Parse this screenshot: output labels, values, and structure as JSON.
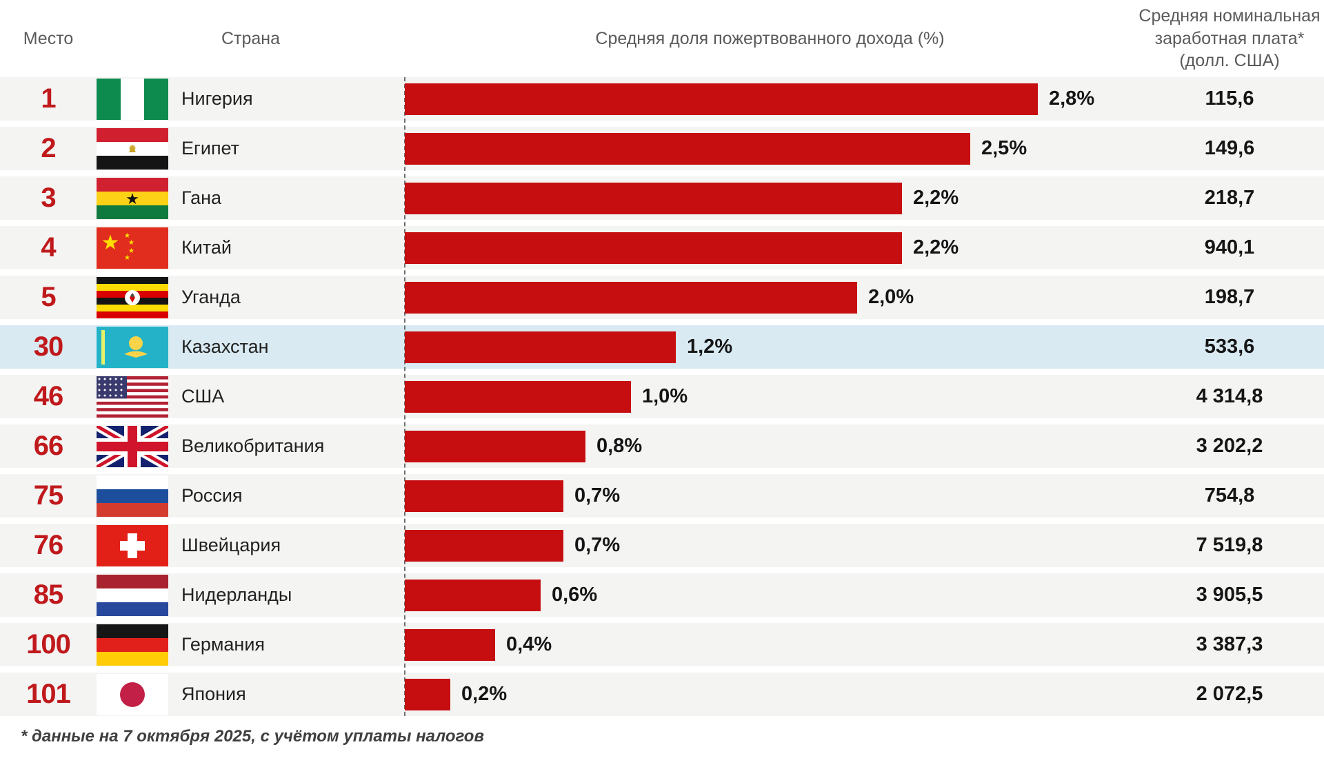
{
  "header": {
    "rank": "Место",
    "country": "Страна",
    "share": "Средняя доля пожертвованного дохода (%)",
    "salary_lines": [
      "Средняя номинальная",
      "заработная плата*",
      "(долл. США)"
    ]
  },
  "footnote": "* данные на 7 октября 2025, с учётом уплаты налогов",
  "colors": {
    "bar": "#c60d10",
    "rank_text": "#c0191c",
    "row_background": "#f4f4f3",
    "highlight_background": "#d9eaf2"
  },
  "chart_data": {
    "type": "bar",
    "orientation": "horizontal",
    "title": "Средняя доля пожертвованного дохода (%)",
    "value_axis_label": "Средняя доля пожертвованного дохода (%)",
    "secondary_column_label": "Средняя номинальная заработная плата* (долл. США)",
    "xlim": [
      0,
      2.8
    ],
    "grid": false,
    "legend": false,
    "rows": [
      {
        "rank": "1",
        "country": "Нигерия",
        "flag": "nigeria",
        "share_pct": 2.8,
        "share_label": "2,8%",
        "salary": "115,6",
        "highlight": false
      },
      {
        "rank": "2",
        "country": "Египет",
        "flag": "egypt",
        "share_pct": 2.5,
        "share_label": "2,5%",
        "salary": "149,6",
        "highlight": false
      },
      {
        "rank": "3",
        "country": "Гана",
        "flag": "ghana",
        "share_pct": 2.2,
        "share_label": "2,2%",
        "salary": "218,7",
        "highlight": false
      },
      {
        "rank": "4",
        "country": "Китай",
        "flag": "china",
        "share_pct": 2.2,
        "share_label": "2,2%",
        "salary": "940,1",
        "highlight": false
      },
      {
        "rank": "5",
        "country": "Уганда",
        "flag": "uganda",
        "share_pct": 2.0,
        "share_label": "2,0%",
        "salary": "198,7",
        "highlight": false
      },
      {
        "rank": "30",
        "country": "Казахстан",
        "flag": "kazakhstan",
        "share_pct": 1.2,
        "share_label": "1,2%",
        "salary": "533,6",
        "highlight": true
      },
      {
        "rank": "46",
        "country": "США",
        "flag": "usa",
        "share_pct": 1.0,
        "share_label": "1,0%",
        "salary": "4 314,8",
        "highlight": false
      },
      {
        "rank": "66",
        "country": "Великобритания",
        "flag": "uk",
        "share_pct": 0.8,
        "share_label": "0,8%",
        "salary": "3 202,2",
        "highlight": false
      },
      {
        "rank": "75",
        "country": "Россия",
        "flag": "russia",
        "share_pct": 0.7,
        "share_label": "0,7%",
        "salary": "754,8",
        "highlight": false
      },
      {
        "rank": "76",
        "country": "Швейцария",
        "flag": "switzerland",
        "share_pct": 0.7,
        "share_label": "0,7%",
        "salary": "7 519,8",
        "highlight": false
      },
      {
        "rank": "85",
        "country": "Нидерланды",
        "flag": "netherlands",
        "share_pct": 0.6,
        "share_label": "0,6%",
        "salary": "3 905,5",
        "highlight": false
      },
      {
        "rank": "100",
        "country": "Германия",
        "flag": "germany",
        "share_pct": 0.4,
        "share_label": "0,4%",
        "salary": "3 387,3",
        "highlight": false
      },
      {
        "rank": "101",
        "country": "Япония",
        "flag": "japan",
        "share_pct": 0.2,
        "share_label": "0,2%",
        "salary": "2 072,5",
        "highlight": false
      }
    ]
  }
}
